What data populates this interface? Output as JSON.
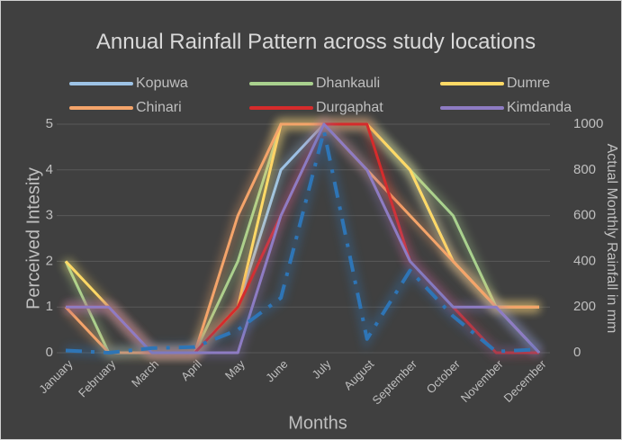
{
  "chart_data": {
    "type": "line",
    "title": "Annual Rainfall Pattern across study locations",
    "x_label": "Months",
    "y_label": "Perceived Intesity",
    "y2_label": "Actual Monthly Rainfall in mm",
    "categories": [
      "January",
      "February",
      "March",
      "April",
      "May",
      "June",
      "July",
      "August",
      "September",
      "October",
      "November",
      "December"
    ],
    "series": [
      {
        "name": "Kopuwa",
        "color": "#9dc3e6",
        "values": [
          1,
          1,
          0,
          0,
          1,
          4,
          5,
          5,
          4,
          2,
          1,
          0
        ]
      },
      {
        "name": "Dhankauli",
        "color": "#a9d18e",
        "values": [
          2,
          0,
          0,
          0,
          2,
          5,
          5,
          5,
          4,
          3,
          1,
          1
        ]
      },
      {
        "name": "Dumre",
        "color": "#ffd966",
        "values": [
          2,
          1,
          0,
          0,
          1,
          5,
          5,
          5,
          4,
          2,
          1,
          1
        ]
      },
      {
        "name": "Chinari",
        "color": "#f4a46a",
        "values": [
          1,
          0,
          0,
          0,
          3,
          5,
          5,
          4,
          3,
          2,
          1,
          1
        ]
      },
      {
        "name": "Durgaphat",
        "color": "#d62b2b",
        "values": [
          1,
          1,
          0,
          0,
          1,
          3,
          5,
          5,
          2,
          1,
          0,
          0
        ]
      },
      {
        "name": "Kimdanda",
        "color": "#8e7cc3",
        "values": [
          1,
          1,
          0,
          0,
          0,
          3,
          5,
          4,
          2,
          1,
          1,
          0
        ]
      },
      {
        "color": "#2e75b6",
        "axis": "y2",
        "dashed": true,
        "values": [
          10,
          0,
          20,
          25,
          100,
          240,
          970,
          60,
          360,
          160,
          5,
          15
        ]
      }
    ],
    "ylim": [
      0,
      5
    ],
    "yticks": [
      0,
      1,
      2,
      3,
      4,
      5
    ],
    "y2lim": [
      0,
      1000
    ],
    "y2ticks": [
      0,
      200,
      400,
      600,
      800,
      1000
    ],
    "grid": true,
    "legend": "top"
  }
}
